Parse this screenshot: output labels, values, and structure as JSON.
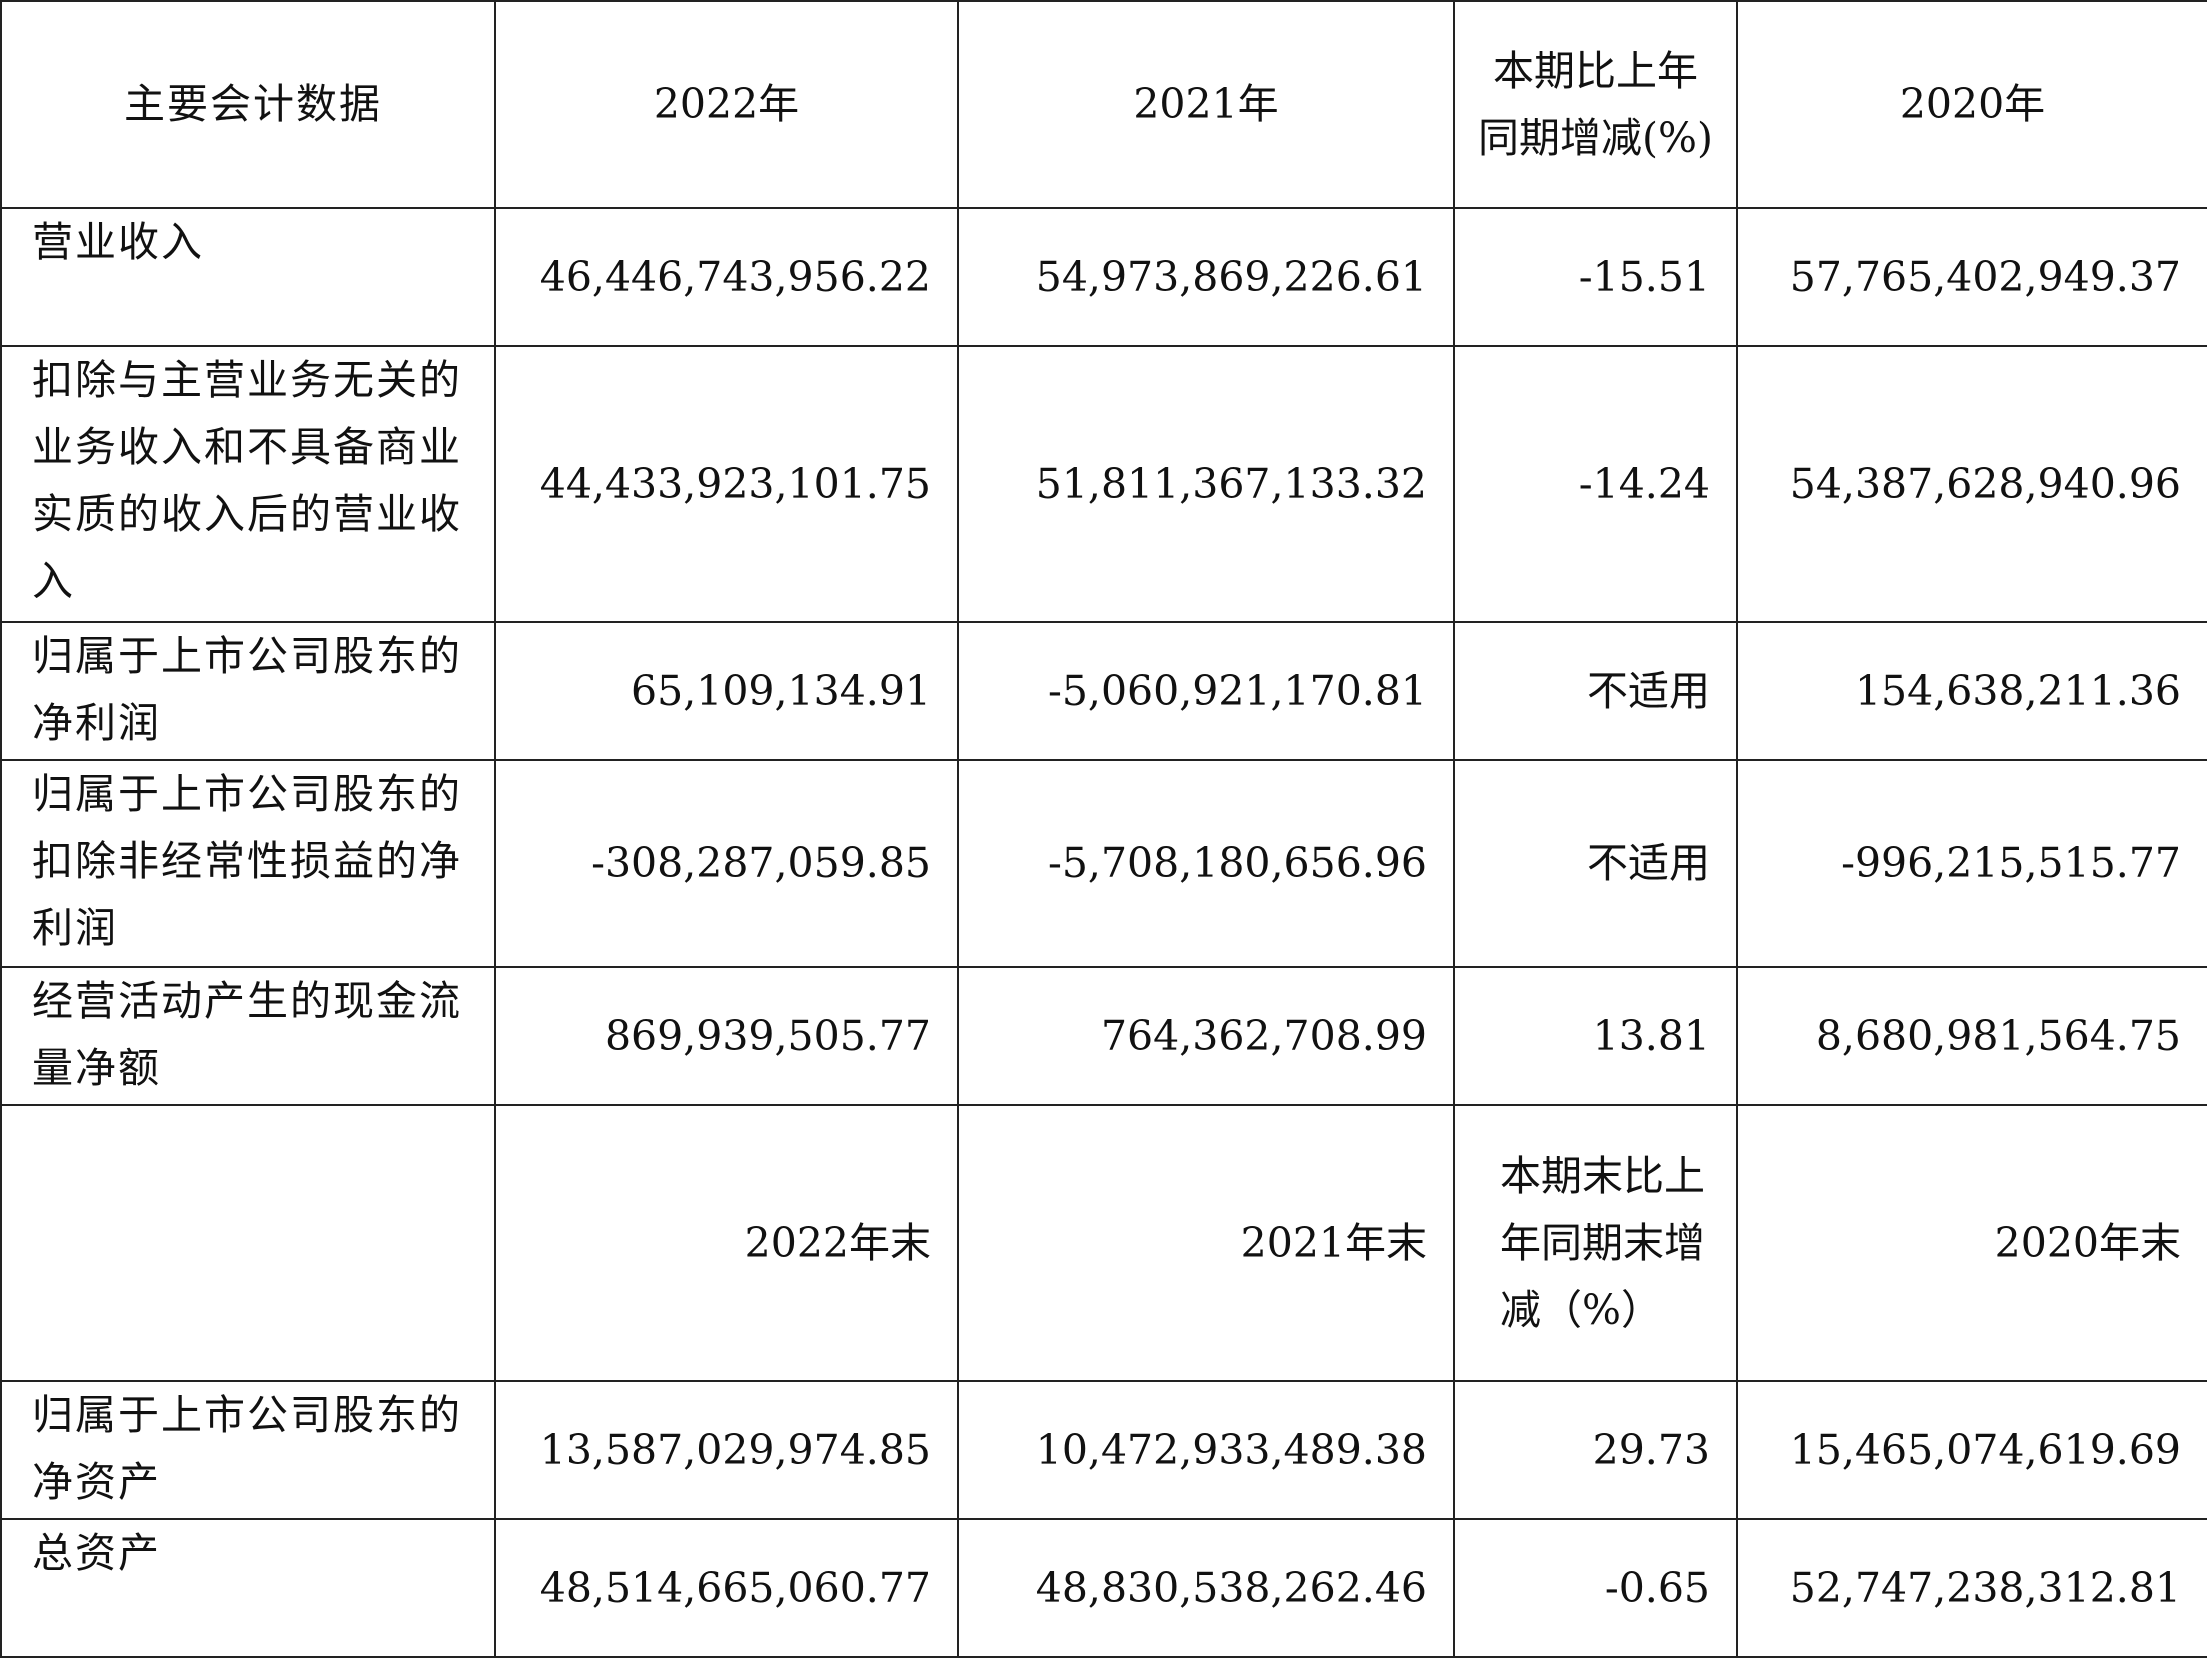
{
  "header": {
    "label": "主要会计数据",
    "col_2022": "2022年",
    "col_2021": "2021年",
    "col_change": "本期比上年同期增减(%)",
    "col_2020": "2020年"
  },
  "rows": [
    {
      "label": "营业收入",
      "v2022": "46,446,743,956.22",
      "v2021": "54,973,869,226.61",
      "change": "-15.51",
      "v2020": "57,765,402,949.37"
    },
    {
      "label": "扣除与主营业务无关的业务收入和不具备商业实质的收入后的营业收入",
      "v2022": "44,433,923,101.75",
      "v2021": "51,811,367,133.32",
      "change": "-14.24",
      "v2020": "54,387,628,940.96"
    },
    {
      "label": "归属于上市公司股东的净利润",
      "v2022": "65,109,134.91",
      "v2021": "-5,060,921,170.81",
      "change": "不适用",
      "v2020": "154,638,211.36"
    },
    {
      "label": "归属于上市公司股东的扣除非经常性损益的净利润",
      "v2022": "-308,287,059.85",
      "v2021": "-5,708,180,656.96",
      "change": "不适用",
      "v2020": "-996,215,515.77"
    },
    {
      "label": "经营活动产生的现金流量净额",
      "v2022": "869,939,505.77",
      "v2021": "764,362,708.99",
      "change": "13.81",
      "v2020": "8,680,981,564.75"
    }
  ],
  "header2": {
    "label": "",
    "col_2022": "2022年末",
    "col_2021": "2021年末",
    "col_change": "本期末比上年同期末增减（%）",
    "col_2020": "2020年末"
  },
  "rows2": [
    {
      "label": "归属于上市公司股东的净资产",
      "v2022": "13,587,029,974.85",
      "v2021": "10,472,933,489.38",
      "change": "29.73",
      "v2020": "15,465,074,619.69"
    },
    {
      "label": "总资产",
      "v2022": "48,514,665,060.77",
      "v2021": "48,830,538,262.46",
      "change": "-0.65",
      "v2020": "52,747,238,312.81"
    }
  ]
}
